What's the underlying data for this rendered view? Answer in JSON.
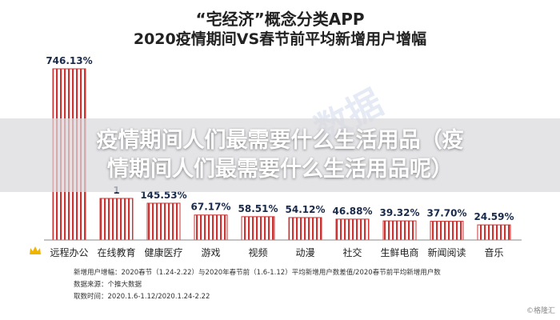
{
  "chart_data": {
    "type": "bar",
    "title": "“宅经济”概念分类APP",
    "subtitle": "2020疫情期间VS春节前平均新增用户增幅",
    "categories": [
      "远程办公",
      "在线教育",
      "健康医疗",
      "游戏",
      "视频",
      "动漫",
      "社交",
      "生鲜电商",
      "新闻阅读",
      "音乐"
    ],
    "values": [
      746.13,
      null,
      145.53,
      67.17,
      58.51,
      54.12,
      46.88,
      39.32,
      37.7,
      24.59
    ],
    "value_labels": [
      "746.13%",
      "1",
      "145.53%",
      "67.17%",
      "58.51%",
      "54.12%",
      "46.88%",
      "39.32%",
      "37.70%",
      "24.59%"
    ],
    "unit": "%",
    "ylim": [
      0,
      746.13
    ],
    "grid": false,
    "bar_color": "#cc3333",
    "bar_pattern": "vertical-stripes"
  },
  "overlay": {
    "line1": "疫情期间人们最需要什么生活用品（疫",
    "line2": "情期间人们最需要什么生活用品呢）"
  },
  "footnote": {
    "line1": "新增用户增幅：2020春节（1.24-2.22）与2020年春节前（1.6-1.12）平均新增用户数差值/2020春节前平均新增用户数",
    "line2": "数据来源：个推大数据",
    "line3": "取数时间：2020.1.6-1.12/2020.1.24-2.22"
  },
  "watermark": "数据",
  "source_mark": "©格隆汇",
  "icons": {
    "crown": "crown-icon"
  }
}
